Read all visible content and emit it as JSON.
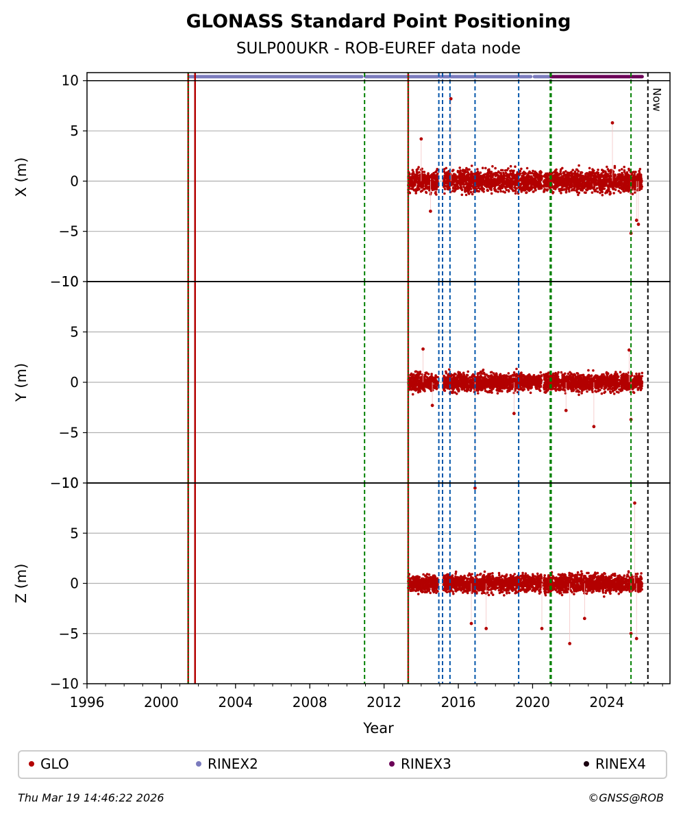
{
  "chart_data": {
    "type": "scatter",
    "title": "GLONASS Standard Point Positioning",
    "subtitle": "SULP00UKR - ROB-EUREF data node",
    "xlabel": "Year",
    "xlim": [
      1996.0,
      2027.4
    ],
    "x_ticks": [
      "1996",
      "2000",
      "2004",
      "2008",
      "2012",
      "2016",
      "2020",
      "2024"
    ],
    "grid": "horizontal",
    "panels": [
      {
        "ylabel": "X (m)",
        "ylim": [
          -10,
          10.8
        ],
        "yticks": [
          "10",
          "5",
          "0",
          "−5",
          "−10"
        ]
      },
      {
        "ylabel": "Y (m)",
        "ylim": [
          -10,
          10
        ],
        "yticks": [
          "10",
          "5",
          "0",
          "−5",
          "−10"
        ]
      },
      {
        "ylabel": "Z (m)",
        "ylim": [
          -10,
          10
        ],
        "yticks": [
          "10",
          "5",
          "0",
          "−5",
          "−10"
        ]
      }
    ],
    "series": [
      {
        "name": "GLO",
        "color": "#b30000",
        "spans": [
          [
            2013.3,
            2014.9
          ],
          [
            2015.2,
            2020.5
          ],
          [
            2020.6,
            2025.9
          ]
        ],
        "X": {
          "center": 0,
          "spread": 1.2,
          "outliers": [
            [
              2014.0,
              4.2
            ],
            [
              2015.6,
              8.2
            ],
            [
              2024.3,
              5.8
            ],
            [
              2025.6,
              -3.9
            ],
            [
              2025.7,
              -4.3
            ],
            [
              2025.3,
              -5.2
            ],
            [
              2014.5,
              -3.0
            ]
          ]
        },
        "Y": {
          "center": 0,
          "spread": 1.0,
          "outliers": [
            [
              2014.1,
              3.3
            ],
            [
              2016.9,
              -10.5
            ],
            [
              2019.0,
              -3.1
            ],
            [
              2023.3,
              -4.4
            ],
            [
              2025.3,
              -3.7
            ],
            [
              2025.2,
              3.2
            ],
            [
              2014.6,
              -2.3
            ],
            [
              2021.8,
              -2.8
            ]
          ]
        },
        "Z": {
          "center": 0,
          "spread": 1.0,
          "outliers": [
            [
              2016.7,
              -4.0
            ],
            [
              2017.5,
              -4.5
            ],
            [
              2020.5,
              -4.5
            ],
            [
              2022.0,
              -6.0
            ],
            [
              2025.3,
              -5.0
            ],
            [
              2025.6,
              -5.5
            ],
            [
              2025.5,
              8.0
            ],
            [
              2022.8,
              -3.5
            ]
          ]
        }
      }
    ],
    "availability_bars": [
      {
        "name": "RINEX2",
        "color": "#7b7bbd",
        "y": 10.4,
        "segments": [
          [
            2001.5,
            2010.8
          ],
          [
            2011.0,
            2014.9
          ],
          [
            2015.0,
            2019.9
          ],
          [
            2020.1,
            2021.0
          ]
        ]
      },
      {
        "name": "RINEX3",
        "color": "#6b0057",
        "y": 10.4,
        "segments": [
          [
            2021.0,
            2025.9
          ]
        ]
      },
      {
        "name": "RINEX4",
        "color": "#1a0010",
        "y": 10.4,
        "segments": []
      }
    ],
    "event_lines": [
      {
        "x": 2001.45,
        "color": "#b30000",
        "style": "solid"
      },
      {
        "x": 2001.45,
        "color": "#008000",
        "style": "dotted"
      },
      {
        "x": 2001.82,
        "color": "#b30000",
        "style": "solid"
      },
      {
        "x": 2010.95,
        "color": "#008000",
        "style": "dashed"
      },
      {
        "x": 2013.3,
        "color": "#b30000",
        "style": "solid"
      },
      {
        "x": 2013.3,
        "color": "#008000",
        "style": "dotted"
      },
      {
        "x": 2014.95,
        "color": "#0055aa",
        "style": "dashed"
      },
      {
        "x": 2015.15,
        "color": "#0055aa",
        "style": "dashed"
      },
      {
        "x": 2015.55,
        "color": "#0055aa",
        "style": "dashed"
      },
      {
        "x": 2016.9,
        "color": "#0055aa",
        "style": "dashed"
      },
      {
        "x": 2019.25,
        "color": "#0055aa",
        "style": "dashed"
      },
      {
        "x": 2020.95,
        "color": "#008000",
        "style": "dashed"
      },
      {
        "x": 2021.0,
        "color": "#008000",
        "style": "dashed"
      },
      {
        "x": 2025.3,
        "color": "#008000",
        "style": "dashed"
      },
      {
        "x": 2026.21,
        "color": "#000000",
        "style": "dashed"
      }
    ],
    "now_label": "Now"
  },
  "legend": [
    {
      "label": "GLO",
      "color": "#b30000"
    },
    {
      "label": "RINEX2",
      "color": "#7b7bbd"
    },
    {
      "label": "RINEX3",
      "color": "#6b0057"
    },
    {
      "label": "RINEX4",
      "color": "#1a0010"
    }
  ],
  "footer": {
    "timestamp": "Thu Mar 19 14:46:22 2026",
    "copyright": "©GNSS@ROB"
  }
}
